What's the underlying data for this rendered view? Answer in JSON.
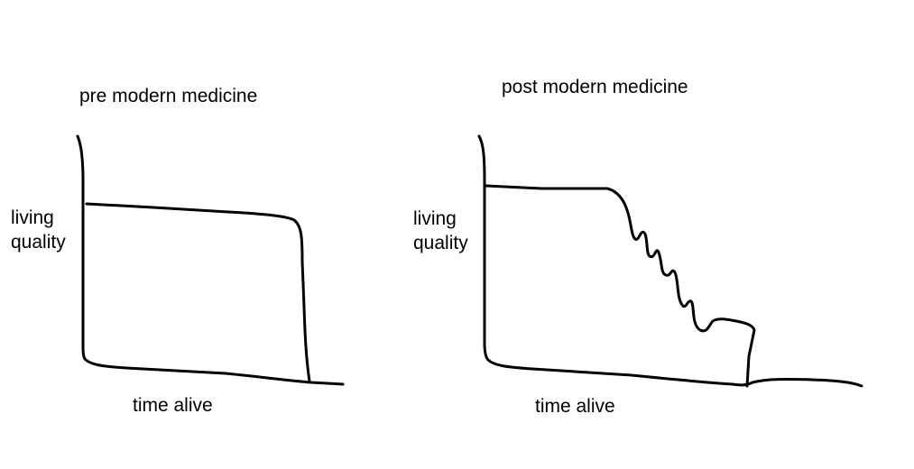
{
  "panels": [
    {
      "title": "pre modern medicine",
      "ylabel_line1": "living",
      "ylabel_line2": "quality",
      "xlabel": "time alive"
    },
    {
      "title": "post modern medicine",
      "ylabel_line1": "living",
      "ylabel_line2": "quality",
      "xlabel": "time alive"
    }
  ],
  "colors": {
    "ink": "#000000",
    "background": "#ffffff"
  }
}
